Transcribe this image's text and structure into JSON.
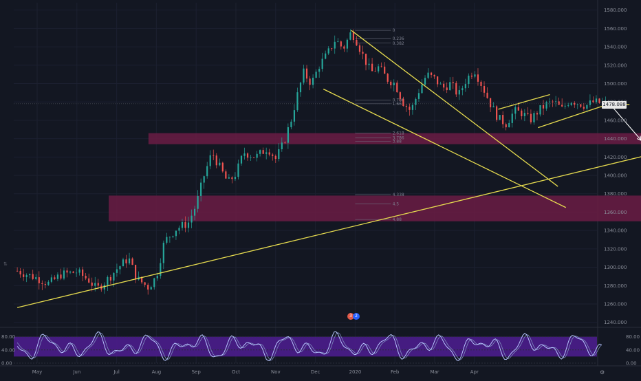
{
  "chart_data": [
    {
      "type": "candlestick",
      "pane": "price",
      "x_labels": [
        "May",
        "Jun",
        "Jul",
        "Aug",
        "Sep",
        "Oct",
        "Nov",
        "Dec",
        "2020",
        "Feb",
        "Mar",
        "Apr"
      ],
      "y_ticks": [
        "1580.000",
        "1560.000",
        "1540.000",
        "1520.000",
        "1500.000",
        "1480.000",
        "1460.000",
        "1440.000",
        "1420.000",
        "1400.000",
        "1380.000",
        "1360.000",
        "1340.000",
        "1320.000",
        "1300.000",
        "1280.000",
        "1260.000",
        "1240.000"
      ],
      "y_tick_values": [
        1580,
        1560,
        1540,
        1520,
        1500,
        1480,
        1460,
        1440,
        1420,
        1400,
        1380,
        1360,
        1340,
        1320,
        1300,
        1280,
        1260,
        1240
      ],
      "ylim": [
        1236,
        1588
      ],
      "last_price": "1478.088",
      "price_path": [
        [
          -0.5,
          1296
        ],
        [
          0,
          1288
        ],
        [
          0.3,
          1282
        ],
        [
          0.6,
          1292
        ],
        [
          1.0,
          1295
        ],
        [
          1.3,
          1286
        ],
        [
          1.5,
          1276
        ],
        [
          1.8,
          1288
        ],
        [
          2.0,
          1298
        ],
        [
          2.3,
          1310
        ],
        [
          2.5,
          1288
        ],
        [
          2.8,
          1278
        ],
        [
          3.0,
          1290
        ],
        [
          3.2,
          1328
        ],
        [
          3.5,
          1342
        ],
        [
          3.8,
          1348
        ],
        [
          4.0,
          1368
        ],
        [
          4.2,
          1400
        ],
        [
          4.4,
          1425
        ],
        [
          4.6,
          1408
        ],
        [
          4.8,
          1392
        ],
        [
          5.0,
          1402
        ],
        [
          5.2,
          1425
        ],
        [
          5.5,
          1420
        ],
        [
          5.8,
          1430
        ],
        [
          6.0,
          1418
        ],
        [
          6.2,
          1435
        ],
        [
          6.4,
          1462
        ],
        [
          6.5,
          1480
        ],
        [
          6.7,
          1512
        ],
        [
          6.9,
          1500
        ],
        [
          7.1,
          1520
        ],
        [
          7.3,
          1532
        ],
        [
          7.5,
          1548
        ],
        [
          7.7,
          1538
        ],
        [
          7.9,
          1556
        ],
        [
          8.0,
          1550
        ],
        [
          8.2,
          1530
        ],
        [
          8.4,
          1512
        ],
        [
          8.6,
          1518
        ],
        [
          8.8,
          1505
        ],
        [
          9.0,
          1500
        ],
        [
          9.2,
          1480
        ],
        [
          9.4,
          1470
        ],
        [
          9.6,
          1492
        ],
        [
          9.8,
          1510
        ],
        [
          10.0,
          1505
        ],
        [
          10.2,
          1495
        ],
        [
          10.4,
          1500
        ],
        [
          10.6,
          1487
        ],
        [
          10.8,
          1505
        ],
        [
          11.0,
          1515
        ],
        [
          11.2,
          1497
        ],
        [
          11.4,
          1478
        ],
        [
          11.6,
          1462
        ],
        [
          11.8,
          1456
        ],
        [
          12.0,
          1470
        ],
        [
          12.2,
          1468
        ],
        [
          12.4,
          1460
        ],
        [
          12.6,
          1470
        ],
        [
          12.8,
          1477
        ],
        [
          13.0,
          1480
        ],
        [
          13.2,
          1472
        ],
        [
          13.4,
          1482
        ],
        [
          13.6,
          1479
        ],
        [
          13.8,
          1476
        ],
        [
          14.0,
          1480
        ],
        [
          14.3,
          1478
        ]
      ],
      "zones": [
        {
          "from": 1434,
          "to": 1446,
          "x_start": 2.8,
          "x_end": 16.5,
          "color": "#6b1c44"
        },
        {
          "from": 1350,
          "to": 1378,
          "x_start": 1.8,
          "x_end": 16.5,
          "color": "#6b1c44"
        }
      ],
      "trendlines": [
        {
          "x1": -0.5,
          "y1": 1256,
          "x2": 16.5,
          "y2": 1434,
          "color": "#e6db4f"
        },
        {
          "x1": 7.9,
          "y1": 1558,
          "x2": 13.1,
          "y2": 1388,
          "color": "#e6db4f"
        },
        {
          "x1": 7.2,
          "y1": 1494,
          "x2": 13.3,
          "y2": 1365,
          "color": "#e6db4f"
        },
        {
          "x1": 11.6,
          "y1": 1472,
          "x2": 12.9,
          "y2": 1488,
          "color": "#e6db4f"
        },
        {
          "x1": 12.6,
          "y1": 1452,
          "x2": 14.4,
          "y2": 1478,
          "color": "#e6db4f"
        },
        {
          "x1": 14.3,
          "y1": 1478,
          "x2": 14.9,
          "y2": 1477,
          "color": "#e6db4f"
        }
      ],
      "projection_arrows": [
        [
          [
            14.4,
            1478
          ],
          [
            15.2,
            1438
          ],
          [
            15.6,
            1466
          ]
        ],
        [
          [
            15.2,
            1438
          ],
          [
            15.8,
            1402
          ],
          [
            16.9,
            1444
          ],
          [
            17.8,
            1382
          ]
        ]
      ],
      "fib_levels": [
        {
          "label": "0",
          "price": 1558
        },
        {
          "label": "0.236",
          "price": 1549
        },
        {
          "label": "0.382",
          "price": 1544
        },
        {
          "label": "0.786",
          "price": 1482
        },
        {
          "label": "1.66",
          "price": 1478
        },
        {
          "label": "2.618",
          "price": 1446
        },
        {
          "label": "3.786",
          "price": 1441
        },
        {
          "label": "3.88",
          "price": 1437
        },
        {
          "label": "4.338",
          "price": 1379
        },
        {
          "label": "4.5",
          "price": 1369
        },
        {
          "label": "4.88",
          "price": 1352
        }
      ],
      "colors": {
        "up": "#26a69a",
        "down": "#ef5350",
        "trendline": "#e6db4f",
        "zone": "#6b1c44",
        "arrow": "#ffffff"
      }
    },
    {
      "type": "line",
      "pane": "oscillator",
      "y_ticks": [
        "80.00",
        "40.00",
        "0.00"
      ],
      "y_tick_values": [
        80,
        40,
        0
      ],
      "ylim": [
        0,
        100
      ],
      "band": {
        "from": 20,
        "to": 80,
        "color": "#4b1d8c"
      },
      "x_end": 14.2,
      "series_color": "#b7c6ff",
      "series_color_2": "#7e8dbf"
    }
  ],
  "badges": [
    {
      "text": "3",
      "color": "#e25b4a"
    },
    {
      "text": "2",
      "color": "#2962ff"
    }
  ]
}
